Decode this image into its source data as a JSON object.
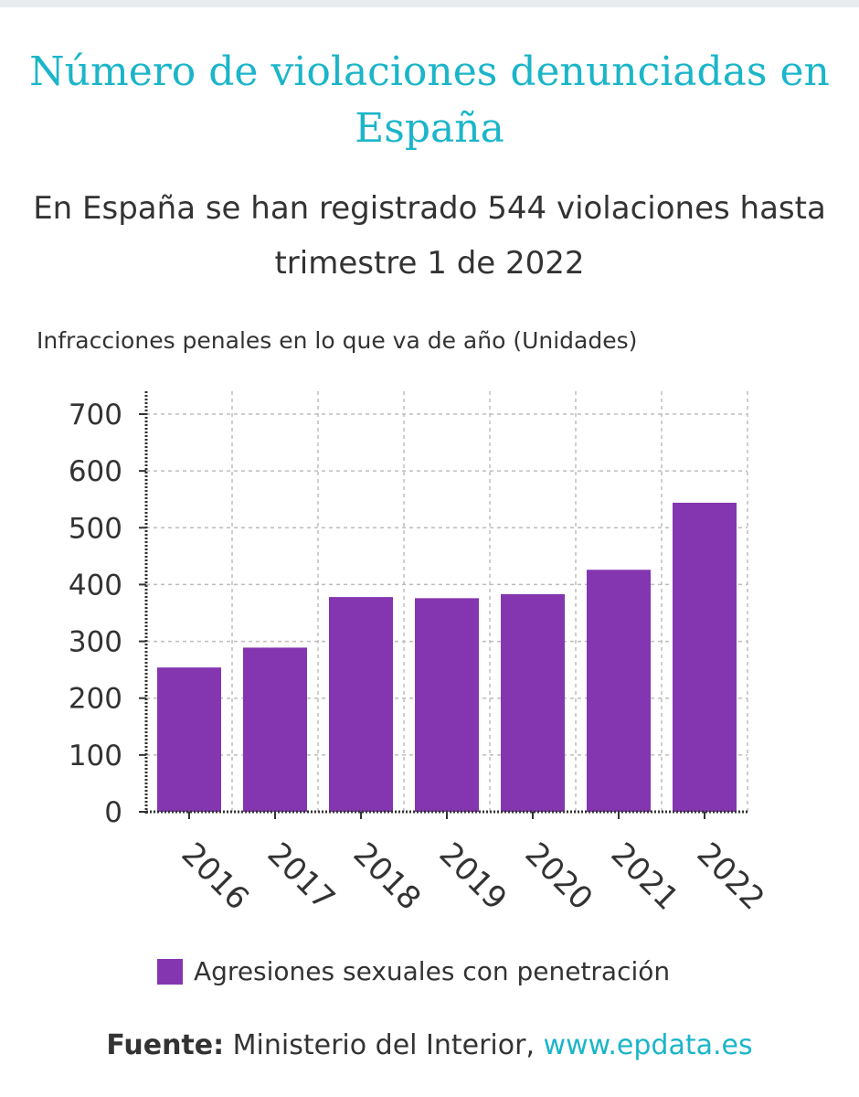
{
  "header": {
    "title": "Número de violaciones denunciadas en España",
    "subtitle": "En España se han registrado 544 violaciones hasta trimestre 1 de 2022",
    "axis_caption": "Infracciones penales en lo que va de año (Unidades)"
  },
  "legend": {
    "label": "Agresiones sexuales con penetración",
    "color": "#8436b0"
  },
  "source": {
    "key": "Fuente:",
    "text": "Ministerio del Interior, ",
    "link": "www.epdata.es"
  },
  "chart_data": {
    "type": "bar",
    "categories": [
      "2016",
      "2017",
      "2018",
      "2019",
      "2020",
      "2021",
      "2022"
    ],
    "series": [
      {
        "name": "Agresiones sexuales con penetración",
        "values": [
          254,
          289,
          378,
          376,
          383,
          426,
          544
        ],
        "color": "#8436b0"
      }
    ],
    "ylim": [
      0,
      700
    ],
    "yticks": [
      0,
      100,
      200,
      300,
      400,
      500,
      600,
      700
    ],
    "grid": true,
    "legend_position": "bottom"
  }
}
